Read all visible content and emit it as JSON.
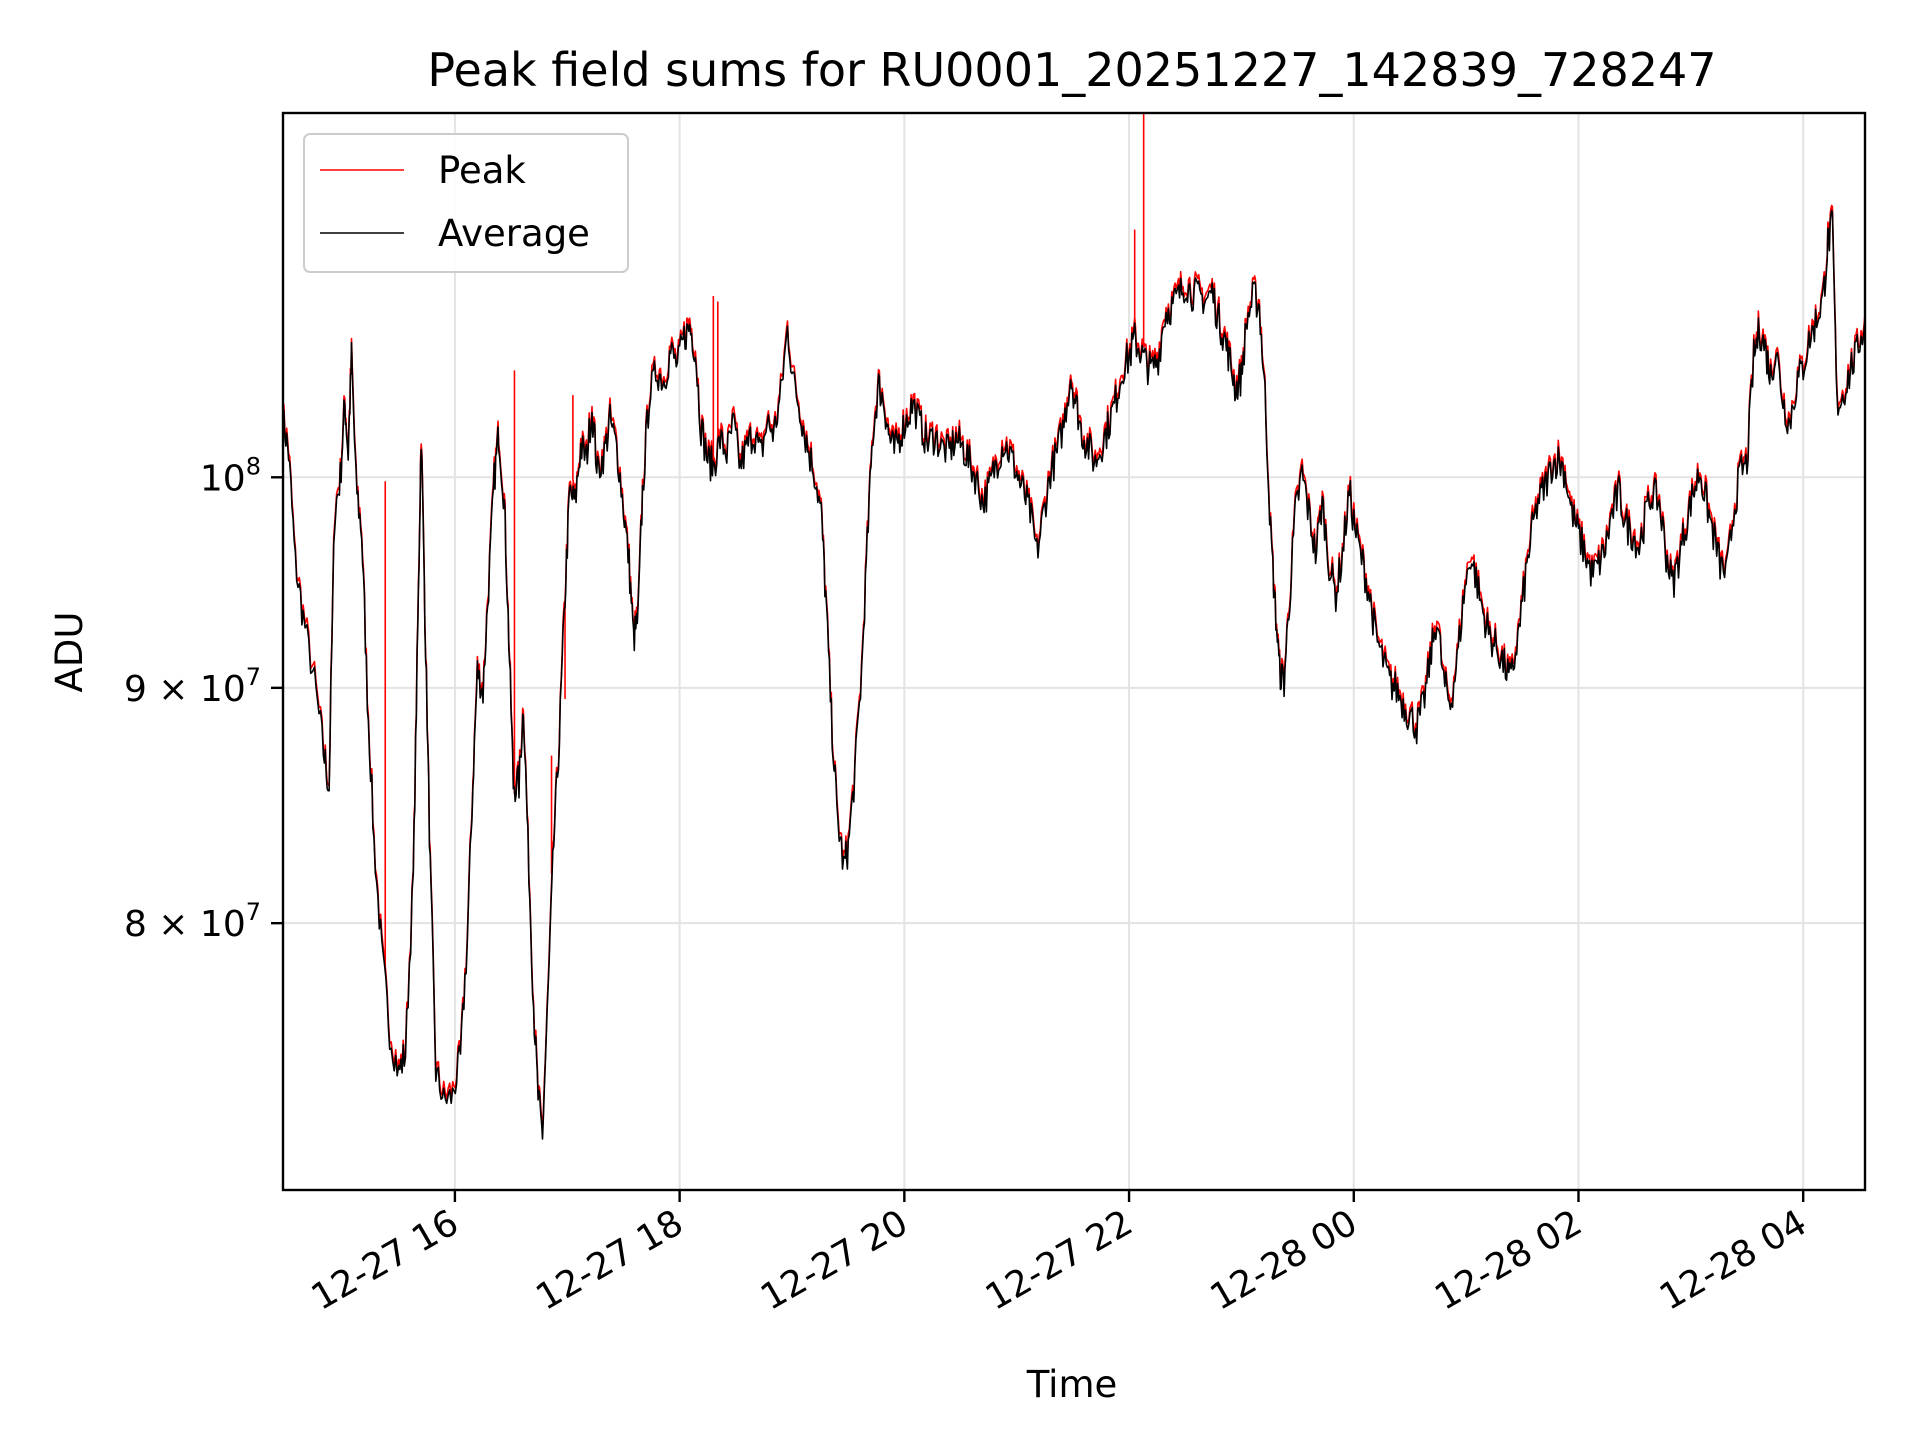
{
  "chart_data": {
    "type": "line",
    "title": "Peak field sums for RU0001_20251227_142839_728247",
    "xlabel": "Time",
    "ylabel": "ADU",
    "yscale": "log",
    "ylim": [
      70000000,
      120000000
    ],
    "xlim_hours": [
      14.47,
      28.55
    ],
    "grid": true,
    "legend_placement": "top-left",
    "x_ticks": [
      {
        "hours": 16,
        "label": "12-27 16"
      },
      {
        "hours": 18,
        "label": "12-27 18"
      },
      {
        "hours": 20,
        "label": "12-27 20"
      },
      {
        "hours": 22,
        "label": "12-27 22"
      },
      {
        "hours": 24,
        "label": "12-28 00"
      },
      {
        "hours": 26,
        "label": "12-28 02"
      },
      {
        "hours": 28,
        "label": "12-28 04"
      }
    ],
    "y_ticks": [
      {
        "value": 100000000,
        "label": "10",
        "sup": "8"
      },
      {
        "value": 90000000,
        "label": "9 × 10",
        "sup": "7"
      },
      {
        "value": 80000000,
        "label": "8 × 10",
        "sup": "7"
      }
    ],
    "series": [
      {
        "name": "Peak",
        "color": "#ff0000",
        "points": [
          [
            14.47,
            103200000.0
          ],
          [
            14.52,
            101500000.0
          ],
          [
            14.58,
            96000000.0
          ],
          [
            14.65,
            93500000.0
          ],
          [
            14.75,
            90500000.0
          ],
          [
            14.83,
            87500000.0
          ],
          [
            14.88,
            85800000.0
          ],
          [
            14.93,
            98500000.0
          ],
          [
            14.98,
            100200000.0
          ],
          [
            15.02,
            104000000.0
          ],
          [
            15.05,
            101500000.0
          ],
          [
            15.08,
            106500000.0
          ],
          [
            15.12,
            100000000.0
          ],
          [
            15.17,
            97500000.0
          ],
          [
            15.22,
            90000000.0
          ],
          [
            15.28,
            83500000.0
          ],
          [
            15.35,
            79000000.0
          ],
          [
            15.42,
            76000000.0
          ],
          [
            15.5,
            74400000.0
          ],
          [
            15.56,
            75200000.0
          ],
          [
            15.63,
            82000000.0
          ],
          [
            15.67,
            93000000.0
          ],
          [
            15.7,
            102500000.0
          ],
          [
            15.74,
            92000000.0
          ],
          [
            15.78,
            82500000.0
          ],
          [
            15.83,
            74500000.0
          ],
          [
            15.9,
            73400000.0
          ],
          [
            15.98,
            73600000.0
          ],
          [
            16.05,
            75000000.0
          ],
          [
            16.11,
            79500000.0
          ],
          [
            16.16,
            86000000.0
          ],
          [
            16.2,
            91000000.0
          ],
          [
            16.25,
            90000000.0
          ],
          [
            16.3,
            95000000.0
          ],
          [
            16.35,
            100200000.0
          ],
          [
            16.39,
            102500000.0
          ],
          [
            16.44,
            99000000.0
          ],
          [
            16.48,
            92500000.0
          ],
          [
            16.52,
            86000000.0
          ],
          [
            16.57,
            86000000.0
          ],
          [
            16.61,
            89500000.0
          ],
          [
            16.65,
            83500000.0
          ],
          [
            16.7,
            77000000.0
          ],
          [
            16.74,
            73500000.0
          ],
          [
            16.78,
            72200000.0
          ],
          [
            16.83,
            77500000.0
          ],
          [
            16.88,
            83500000.0
          ],
          [
            16.93,
            88000000.0
          ],
          [
            16.98,
            94500000.0
          ],
          [
            17.02,
            99500000.0
          ],
          [
            17.07,
            99000000.0
          ],
          [
            17.12,
            101800000.0
          ],
          [
            17.17,
            101200000.0
          ],
          [
            17.22,
            103800000.0
          ],
          [
            17.27,
            100500000.0
          ],
          [
            17.33,
            101500000.0
          ],
          [
            17.38,
            103200000.0
          ],
          [
            17.44,
            101800000.0
          ],
          [
            17.5,
            98800000.0
          ],
          [
            17.55,
            96000000.0
          ],
          [
            17.59,
            92500000.0
          ],
          [
            17.63,
            93500000.0
          ],
          [
            17.67,
            99500000.0
          ],
          [
            17.73,
            104500000.0
          ],
          [
            17.8,
            105800000.0
          ],
          [
            17.86,
            105200000.0
          ],
          [
            17.92,
            106800000.0
          ],
          [
            17.98,
            106000000.0
          ],
          [
            18.04,
            107500000.0
          ],
          [
            18.09,
            108200000.0
          ],
          [
            18.14,
            106800000.0
          ],
          [
            18.19,
            102800000.0
          ],
          [
            18.25,
            101200000.0
          ],
          [
            18.3,
            100800000.0
          ],
          [
            18.36,
            102200000.0
          ],
          [
            18.42,
            101500000.0
          ],
          [
            18.48,
            103000000.0
          ],
          [
            18.54,
            100800000.0
          ],
          [
            18.6,
            101800000.0
          ],
          [
            18.66,
            102500000.0
          ],
          [
            18.72,
            101400000.0
          ],
          [
            18.78,
            103000000.0
          ],
          [
            18.84,
            102500000.0
          ],
          [
            18.9,
            104500000.0
          ],
          [
            18.96,
            108000000.0
          ],
          [
            19.02,
            105000000.0
          ],
          [
            19.08,
            103500000.0
          ],
          [
            19.14,
            101800000.0
          ],
          [
            19.2,
            100500000.0
          ],
          [
            19.26,
            98500000.0
          ],
          [
            19.3,
            94500000.0
          ],
          [
            19.35,
            89000000.0
          ],
          [
            19.4,
            84800000.0
          ],
          [
            19.46,
            82500000.0
          ],
          [
            19.5,
            83300000.0
          ],
          [
            19.56,
            86500000.0
          ],
          [
            19.62,
            91000000.0
          ],
          [
            19.67,
            97000000.0
          ],
          [
            19.72,
            102500000.0
          ],
          [
            19.77,
            105000000.0
          ],
          [
            19.82,
            104000000.0
          ],
          [
            19.86,
            102500000.0
          ],
          [
            19.91,
            101600000.0
          ],
          [
            19.96,
            102400000.0
          ],
          [
            20.02,
            103200000.0
          ],
          [
            20.08,
            104000000.0
          ],
          [
            20.15,
            102800000.0
          ],
          [
            20.21,
            102000000.0
          ],
          [
            20.27,
            102400000.0
          ],
          [
            20.33,
            101800000.0
          ],
          [
            20.4,
            101500000.0
          ],
          [
            20.46,
            102200000.0
          ],
          [
            20.52,
            101800000.0
          ],
          [
            20.58,
            101000000.0
          ],
          [
            20.64,
            100200000.0
          ],
          [
            20.7,
            99000000.0
          ],
          [
            20.76,
            99800000.0
          ],
          [
            20.82,
            101000000.0
          ],
          [
            20.88,
            102000000.0
          ],
          [
            20.94,
            101500000.0
          ],
          [
            21.0,
            100500000.0
          ],
          [
            21.06,
            99500000.0
          ],
          [
            21.12,
            98500000.0
          ],
          [
            21.18,
            96500000.0
          ],
          [
            21.24,
            98500000.0
          ],
          [
            21.3,
            100500000.0
          ],
          [
            21.36,
            101500000.0
          ],
          [
            21.42,
            103000000.0
          ],
          [
            21.48,
            105500000.0
          ],
          [
            21.53,
            104000000.0
          ],
          [
            21.58,
            102500000.0
          ],
          [
            21.64,
            101800000.0
          ],
          [
            21.7,
            101000000.0
          ],
          [
            21.76,
            102000000.0
          ],
          [
            21.82,
            103000000.0
          ],
          [
            21.88,
            104200000.0
          ],
          [
            21.94,
            105800000.0
          ],
          [
            22.0,
            106500000.0
          ],
          [
            22.05,
            107500000.0
          ],
          [
            22.1,
            106800000.0
          ],
          [
            22.15,
            106200000.0
          ],
          [
            22.2,
            105800000.0
          ],
          [
            22.26,
            106500000.0
          ],
          [
            22.32,
            108800000.0
          ],
          [
            22.38,
            109200000.0
          ],
          [
            22.44,
            109800000.0
          ],
          [
            22.5,
            110500000.0
          ],
          [
            22.56,
            110000000.0
          ],
          [
            22.62,
            109800000.0
          ],
          [
            22.68,
            109600000.0
          ],
          [
            22.74,
            110000000.0
          ],
          [
            22.8,
            108500000.0
          ],
          [
            22.85,
            107500000.0
          ],
          [
            22.9,
            106200000.0
          ],
          [
            22.95,
            104800000.0
          ],
          [
            23.0,
            105500000.0
          ],
          [
            23.05,
            108500000.0
          ],
          [
            23.11,
            109800000.0
          ],
          [
            23.16,
            109200000.0
          ],
          [
            23.21,
            104500000.0
          ],
          [
            23.26,
            97500000.0
          ],
          [
            23.3,
            94000000.0
          ],
          [
            23.34,
            91000000.0
          ],
          [
            23.38,
            90500000.0
          ],
          [
            23.43,
            94500000.0
          ],
          [
            23.48,
            98500000.0
          ],
          [
            23.54,
            100500000.0
          ],
          [
            23.6,
            98500000.0
          ],
          [
            23.66,
            96500000.0
          ],
          [
            23.72,
            99000000.0
          ],
          [
            23.78,
            96000000.0
          ],
          [
            23.84,
            94500000.0
          ],
          [
            23.9,
            96500000.0
          ],
          [
            23.96,
            99500000.0
          ],
          [
            24.02,
            97500000.0
          ],
          [
            24.08,
            96000000.0
          ],
          [
            24.14,
            94500000.0
          ],
          [
            24.2,
            92500000.0
          ],
          [
            24.26,
            91500000.0
          ],
          [
            24.32,
            90500000.0
          ],
          [
            24.38,
            90200000.0
          ],
          [
            24.44,
            89500000.0
          ],
          [
            24.5,
            89000000.0
          ],
          [
            24.56,
            88500000.0
          ],
          [
            24.62,
            89500000.0
          ],
          [
            24.68,
            91500000.0
          ],
          [
            24.74,
            93500000.0
          ],
          [
            24.8,
            90500000.0
          ],
          [
            24.86,
            89500000.0
          ],
          [
            24.92,
            91500000.0
          ],
          [
            24.98,
            94500000.0
          ],
          [
            25.04,
            96500000.0
          ],
          [
            25.1,
            95000000.0
          ],
          [
            25.16,
            93500000.0
          ],
          [
            25.22,
            92500000.0
          ],
          [
            25.28,
            92000000.0
          ],
          [
            25.34,
            91200000.0
          ],
          [
            25.4,
            90600000.0
          ],
          [
            25.46,
            92500000.0
          ],
          [
            25.52,
            95000000.0
          ],
          [
            25.58,
            97500000.0
          ],
          [
            25.64,
            99000000.0
          ],
          [
            25.7,
            99800000.0
          ],
          [
            25.76,
            100800000.0
          ],
          [
            25.82,
            101200000.0
          ],
          [
            25.88,
            100500000.0
          ],
          [
            25.94,
            98500000.0
          ],
          [
            26.0,
            97500000.0
          ],
          [
            26.06,
            96500000.0
          ],
          [
            26.12,
            95500000.0
          ],
          [
            26.18,
            96000000.0
          ],
          [
            26.24,
            96800000.0
          ],
          [
            26.3,
            98500000.0
          ],
          [
            26.36,
            99500000.0
          ],
          [
            26.42,
            98000000.0
          ],
          [
            26.48,
            97500000.0
          ],
          [
            26.54,
            96800000.0
          ],
          [
            26.6,
            98500000.0
          ],
          [
            26.66,
            99500000.0
          ],
          [
            26.72,
            99000000.0
          ],
          [
            26.78,
            96500000.0
          ],
          [
            26.84,
            95000000.0
          ],
          [
            26.9,
            96500000.0
          ],
          [
            26.96,
            98000000.0
          ],
          [
            27.02,
            99500000.0
          ],
          [
            27.08,
            100500000.0
          ],
          [
            27.14,
            99000000.0
          ],
          [
            27.2,
            97500000.0
          ],
          [
            27.26,
            96000000.0
          ],
          [
            27.32,
            95500000.0
          ],
          [
            27.38,
            98500000.0
          ],
          [
            27.44,
            100500000.0
          ],
          [
            27.5,
            101000000.0
          ],
          [
            27.56,
            106500000.0
          ],
          [
            27.61,
            108000000.0
          ],
          [
            27.66,
            107000000.0
          ],
          [
            27.71,
            105500000.0
          ],
          [
            27.76,
            106800000.0
          ],
          [
            27.82,
            104200000.0
          ],
          [
            27.88,
            103000000.0
          ],
          [
            27.94,
            105000000.0
          ],
          [
            28.0,
            106000000.0
          ],
          [
            28.06,
            107500000.0
          ],
          [
            28.12,
            108500000.0
          ],
          [
            28.18,
            109800000.0
          ],
          [
            28.22,
            112800000.0
          ],
          [
            28.26,
            113800000.0
          ],
          [
            28.3,
            104000000.0
          ],
          [
            28.36,
            104500000.0
          ],
          [
            28.42,
            105800000.0
          ],
          [
            28.48,
            106800000.0
          ],
          [
            28.55,
            108500000.0
          ]
        ],
        "spikes": [
          {
            "hours": 15.38,
            "value": 99800000.0
          },
          {
            "hours": 16.53,
            "value": 105500000.0
          },
          {
            "hours": 16.86,
            "value": 87000000.0
          },
          {
            "hours": 16.98,
            "value": 89500000.0
          },
          {
            "hours": 17.05,
            "value": 104200000.0
          },
          {
            "hours": 18.3,
            "value": 109500000.0
          },
          {
            "hours": 18.34,
            "value": 109200000.0
          },
          {
            "hours": 22.05,
            "value": 113200000.0
          },
          {
            "hours": 22.13,
            "value": 120000000.0
          }
        ]
      },
      {
        "name": "Average",
        "color": "#000000",
        "offset_fraction": -0.002
      }
    ]
  }
}
